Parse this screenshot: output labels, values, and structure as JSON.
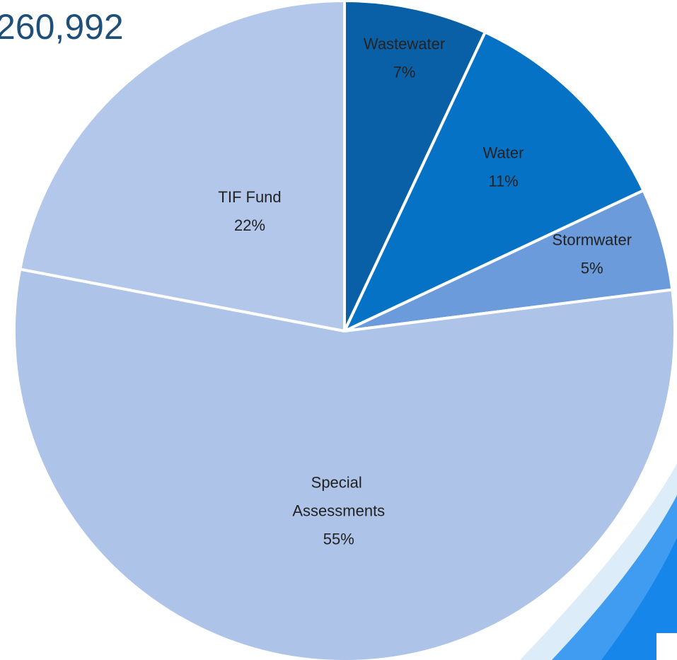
{
  "chart_data": {
    "type": "pie",
    "title": "260,992",
    "categories": [
      "Wastewater",
      "Water",
      "Stormwater",
      "Special Assessments",
      "TIF Fund"
    ],
    "values": [
      7,
      11,
      5,
      55,
      22
    ],
    "value_labels": [
      "7%",
      "11%",
      "5%",
      "55%",
      "22%"
    ],
    "colors": [
      "#0a60a6",
      "#0672c6",
      "#6b9bdb",
      "#aec3e8",
      "#b3c7ea"
    ]
  }
}
